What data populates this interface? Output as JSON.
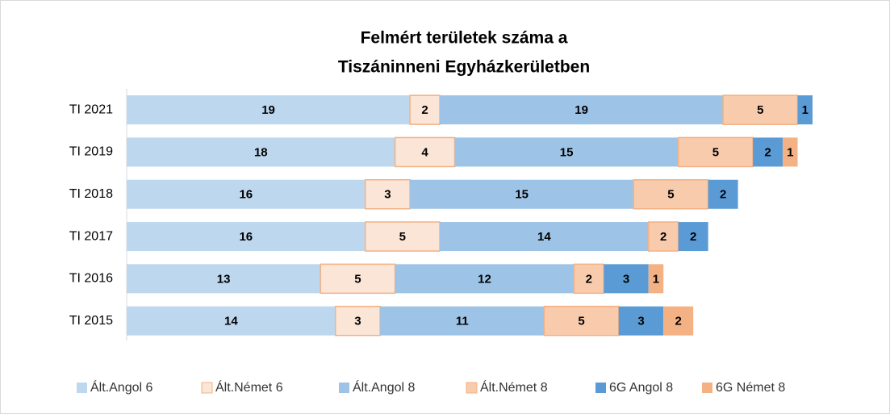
{
  "chart_data": {
    "type": "stacked-bar-horizontal",
    "title": [
      "Felmért területek száma a",
      "Tiszáninneni Egyházkerületben"
    ],
    "categories": [
      "TI 2021",
      "TI 2019",
      "TI 2018",
      "TI 2017",
      "TI 2016",
      "TI 2015"
    ],
    "series": [
      {
        "name": "Ált.Angol 6",
        "color": "#bdd7ee",
        "values": [
          19,
          18,
          16,
          16,
          13,
          14
        ]
      },
      {
        "name": "Ált.Német 6",
        "color": "#fbe5d6",
        "values": [
          2,
          4,
          3,
          5,
          5,
          3
        ]
      },
      {
        "name": "Ált.Angol 8",
        "color": "#9dc3e6",
        "values": [
          19,
          15,
          15,
          14,
          12,
          11
        ]
      },
      {
        "name": "Ált.Német 8",
        "color": "#f8cbad",
        "values": [
          5,
          5,
          5,
          2,
          2,
          5
        ]
      },
      {
        "name": "6G Angol 8",
        "color": "#5b9bd5",
        "values": [
          1,
          2,
          2,
          2,
          3,
          3
        ]
      },
      {
        "name": "6G Német 8",
        "color": "#f4b183",
        "values": [
          null,
          1,
          null,
          null,
          1,
          2
        ]
      }
    ],
    "legend": "bottom"
  }
}
